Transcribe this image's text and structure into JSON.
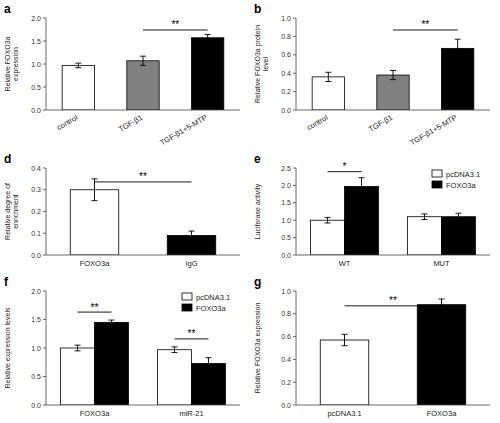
{
  "chart_data": [
    {
      "type": "bar",
      "title": "a",
      "categories": [
        "control",
        "TGF-β1",
        "TGF-β1+5-MTP"
      ],
      "values": [
        0.97,
        1.07,
        1.57
      ],
      "errors": [
        0.05,
        0.1,
        0.07
      ],
      "colors": [
        "white",
        "#808080",
        "black"
      ],
      "ylabel": "Relative FOXO3a\nexpression",
      "ylim": [
        0,
        2.0
      ],
      "yticks": [
        {
          "value": 0.0,
          "label": "0.0"
        },
        0.5,
        {
          "value": 1.0,
          "label": "1.0"
        },
        1.5,
        {
          "value": 2.0,
          "label": "2.0"
        }
      ],
      "annotations": [
        {
          "text": "**",
          "from": 1,
          "to": 2,
          "y": 1.74
        }
      ]
    },
    {
      "type": "bar",
      "title": "b",
      "categories": [
        "control",
        "TGF-β1",
        "TGF-β1+5-MTP"
      ],
      "values": [
        0.36,
        0.38,
        0.67
      ],
      "errors": [
        0.05,
        0.05,
        0.1
      ],
      "colors": [
        "white",
        "#808080",
        "black"
      ],
      "ylabel": "Relative FOXO3a protein\nlevel",
      "ylim": [
        0,
        1.0
      ],
      "yticks": [
        {
          "value": 0.0,
          "label": "0.0"
        },
        0.2,
        0.4,
        0.6,
        0.8,
        {
          "value": 1.0,
          "label": "1.0"
        }
      ],
      "annotations": [
        {
          "text": "**",
          "from": 1,
          "to": 2,
          "y": 0.87
        }
      ]
    },
    {
      "type": "bar",
      "title": "d",
      "categories": [
        "FOXO3a",
        "IgG"
      ],
      "values": [
        0.3,
        0.09
      ],
      "errors": [
        0.05,
        0.02
      ],
      "colors": [
        "white",
        "black"
      ],
      "ylabel": "Relative degree of\nenrichment",
      "ylim": [
        0,
        0.4
      ],
      "yticks": [
        {
          "value": 0.0,
          "label": "0.0"
        },
        0.1,
        0.2,
        0.3,
        0.4
      ],
      "annotations": [
        {
          "text": "**",
          "from": 0,
          "to": 1,
          "y": 0.336
        }
      ]
    },
    {
      "type": "bar",
      "title": "e",
      "categories": [
        "WT",
        "MUT"
      ],
      "series": [
        {
          "name": "pcDNA3.1",
          "color": "white",
          "values": [
            1.0,
            1.1
          ],
          "errors": [
            0.08,
            0.08
          ]
        },
        {
          "name": "FOXO3a",
          "color": "black",
          "values": [
            1.97,
            1.1
          ],
          "errors": [
            0.25,
            0.1
          ]
        }
      ],
      "ylabel": "Luciferase activity",
      "ylim": [
        0,
        2.5
      ],
      "yticks": [
        {
          "value": 0.0,
          "label": "0.0"
        },
        0.5,
        {
          "value": 1.0,
          "label": "1.0"
        },
        1.5,
        {
          "value": 2.0,
          "label": "2.0"
        },
        2.5
      ],
      "legend": "upper right",
      "annotations": [
        {
          "text": "*",
          "category": 0,
          "y": 2.395
        }
      ]
    },
    {
      "type": "bar",
      "title": "f",
      "categories": [
        "FOXO3a",
        "miR-21"
      ],
      "series": [
        {
          "name": "pcDNA3.1",
          "color": "white",
          "values": [
            1.0,
            0.97
          ],
          "errors": [
            0.05,
            0.05
          ]
        },
        {
          "name": "FOXO3a",
          "color": "black",
          "values": [
            1.45,
            0.73
          ],
          "errors": [
            0.04,
            0.1
          ]
        }
      ],
      "ylabel": "Relative expression levels",
      "ylim": [
        0,
        2.0
      ],
      "yticks": [
        {
          "value": 0.0,
          "label": "0.0"
        },
        0.5,
        {
          "value": 1.0,
          "label": "1.0"
        },
        1.5,
        {
          "value": 2.0,
          "label": "2.0"
        }
      ],
      "legend": "upper right",
      "annotations": [
        {
          "text": "**",
          "category": 0,
          "y": 1.63
        },
        {
          "text": "**",
          "category": 1,
          "y": 1.16
        }
      ]
    },
    {
      "type": "bar",
      "title": "g",
      "categories": [
        "pcDNA3.1",
        "FOXO3a"
      ],
      "values": [
        0.57,
        0.88
      ],
      "errors": [
        0.05,
        0.05
      ],
      "colors": [
        "white",
        "black"
      ],
      "ylabel": "Relative FOXO3a expression",
      "ylim": [
        0,
        1.0
      ],
      "yticks": [
        {
          "value": 0.0,
          "label": "0.0"
        },
        0.2,
        0.4,
        0.6,
        0.8,
        {
          "value": 1.0,
          "label": "1.0"
        }
      ],
      "annotations": [
        {
          "text": "**",
          "from": 0,
          "to": 1,
          "y": 0.87
        }
      ]
    }
  ]
}
